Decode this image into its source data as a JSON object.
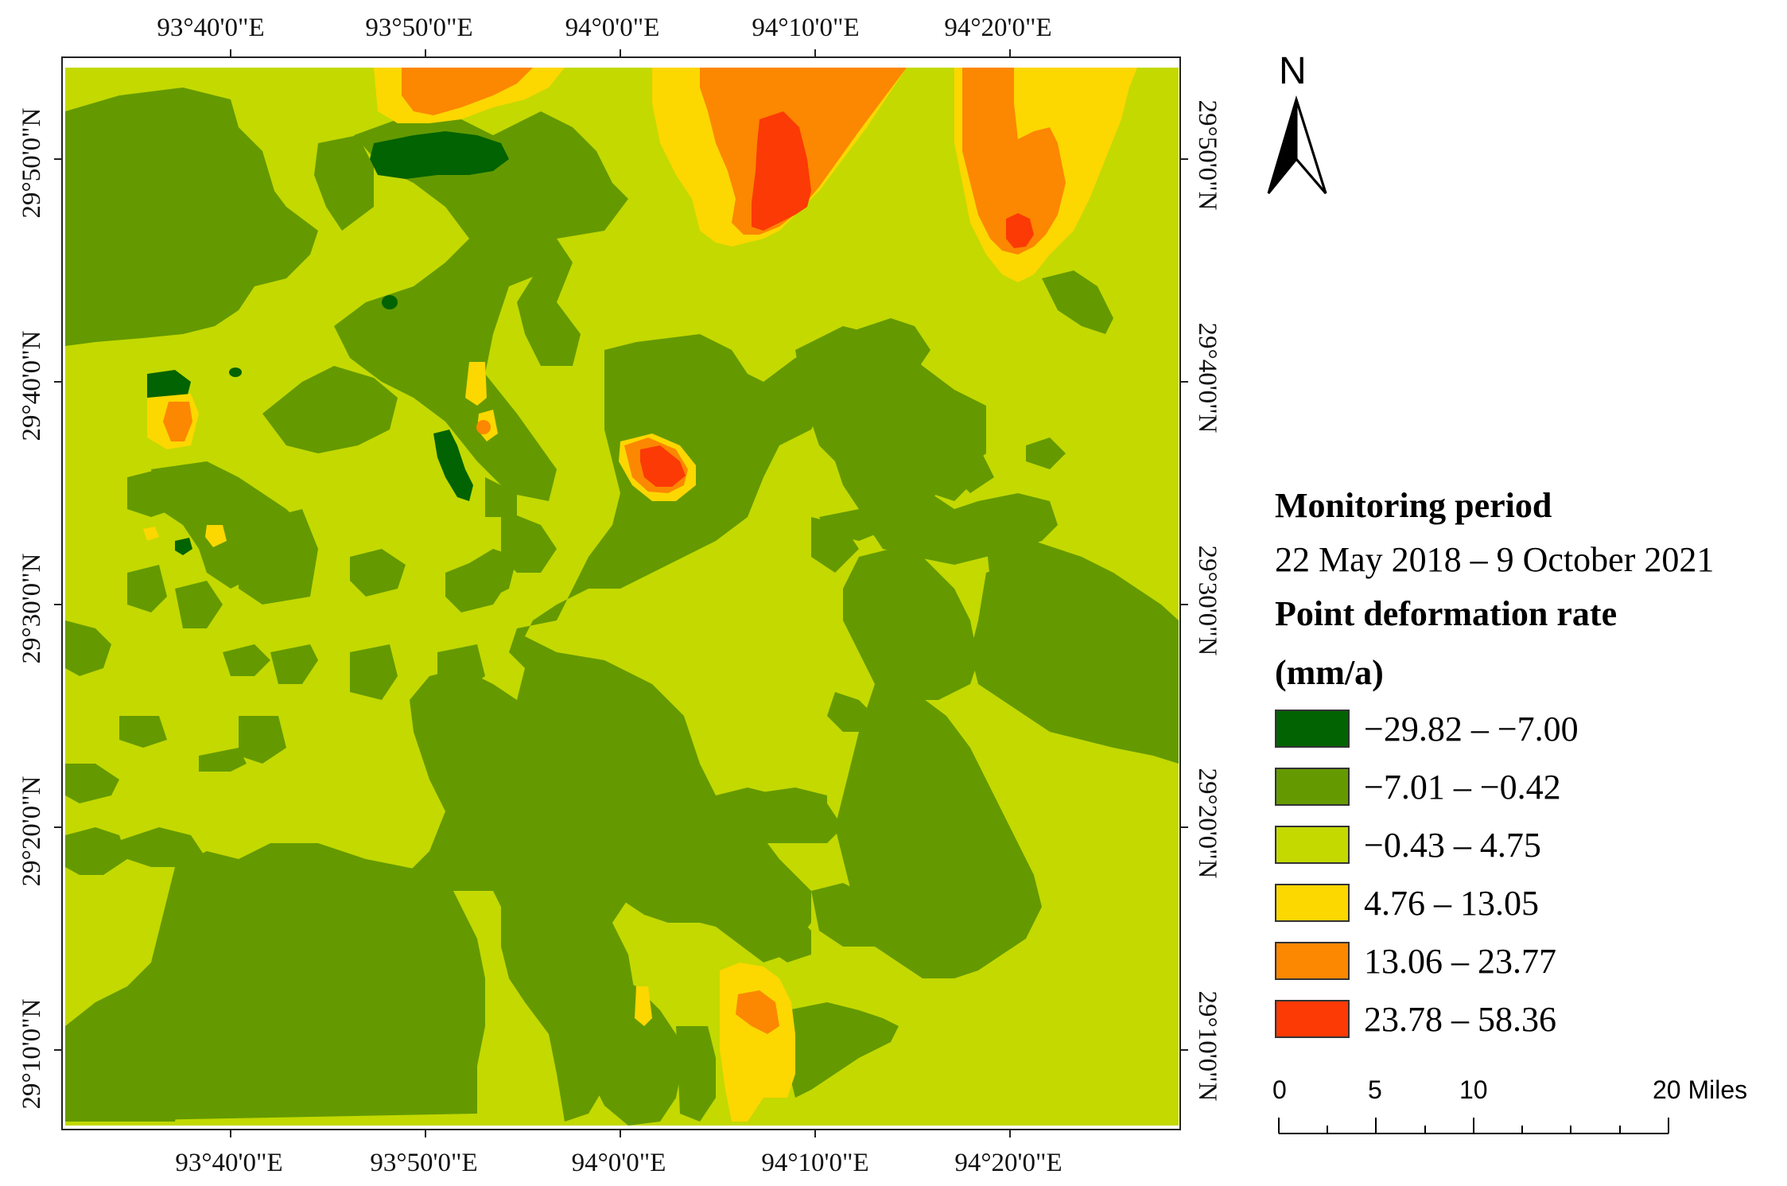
{
  "map": {
    "top_ticks": [
      "93°40'0\"E",
      "93°50'0\"E",
      "94°0'0\"E",
      "94°10'0\"E",
      "94°20'0\"E"
    ],
    "bottom_ticks": [
      "93°40'0\"E",
      "93°50'0\"E",
      "94°0'0\"E",
      "94°10'0\"E",
      "94°20'0\"E"
    ],
    "left_ticks": [
      "29°50'0\"N",
      "29°40'0\"N",
      "29°30'0\"N",
      "29°20'0\"N",
      "29°10'0\"N"
    ],
    "right_ticks": [
      "29°50'0\"N",
      "29°40'0\"N",
      "29°30'0\"N",
      "29°20'0\"N",
      "29°10'0\"N"
    ]
  },
  "north_arrow": {
    "letter": "N",
    "icon": "north-arrow-icon"
  },
  "legend": {
    "heading1": "Monitoring period",
    "period": "22 May 2018 – 9 October 2021",
    "heading2": "Point deformation rate",
    "unit": "(mm/a)",
    "classes": [
      {
        "label": "−29.82 – −7.00",
        "color": "#026302"
      },
      {
        "label": "−7.01 – −0.42",
        "color": "#649a00"
      },
      {
        "label": "−0.43 – 4.75",
        "color": "#c3d900"
      },
      {
        "label": "4.76 – 13.05",
        "color": "#fcd700"
      },
      {
        "label": "13.06 – 23.77",
        "color": "#fc8700"
      },
      {
        "label": "23.78 – 58.36",
        "color": "#fb3a05"
      }
    ]
  },
  "scale_bar": {
    "labels": [
      "0",
      "5",
      "10",
      "20 Miles"
    ]
  }
}
